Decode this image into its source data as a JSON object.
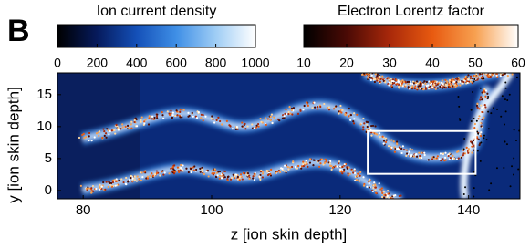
{
  "panel_label": "B",
  "chart_data": {
    "type": "image",
    "xlabel": "z [ion skin depth]",
    "ylabel": "y [ion skin depth]",
    "xlim": [
      76,
      148
    ],
    "ylim": [
      -1.3,
      18.4
    ],
    "xticks": [
      80,
      100,
      120,
      140
    ],
    "yticks": [
      0,
      5,
      10,
      15
    ],
    "highlight_box": {
      "xlim": [
        124.3,
        141.1
      ],
      "ylim": [
        2.6,
        9.3
      ],
      "color": "#ffffff"
    },
    "colorbars": [
      {
        "title": "Ion current density",
        "lim": [
          0,
          1000
        ],
        "ticks": [
          0,
          200,
          400,
          600,
          800,
          1000
        ],
        "colors": [
          "#000000",
          "#061a5c",
          "#1450b8",
          "#3f8fe6",
          "#9fcdf5",
          "#ffffff"
        ]
      },
      {
        "title": "Electron Lorentz factor",
        "lim": [
          10,
          60
        ],
        "ticks": [
          10,
          20,
          30,
          40,
          50,
          60
        ],
        "colors": [
          "#000000",
          "#4a0a05",
          "#a8280a",
          "#e85a10",
          "#f7a050",
          "#ffffff"
        ]
      }
    ]
  }
}
